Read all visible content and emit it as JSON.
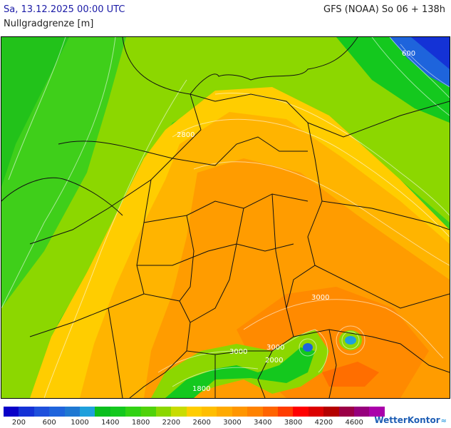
{
  "header": {
    "datetime": "Sa, 13.12.2025 00:00 UTC",
    "model_run": "GFS (NOAA) So 06 + 138h",
    "parameter": "Nullgradgrenze [m]"
  },
  "map": {
    "contour_labels": [
      "600",
      "2800",
      "3000",
      "3000",
      "3000",
      "2000",
      "1800"
    ]
  },
  "legend": {
    "colors": [
      "#0a00c8",
      "#1432d6",
      "#1e50dc",
      "#1e64dc",
      "#1e78d2",
      "#1ea0dc",
      "#0abe1e",
      "#14c81e",
      "#32d214",
      "#50d20a",
      "#8cd700",
      "#c8dc00",
      "#ffcd00",
      "#ffbe00",
      "#ffaa00",
      "#ff9600",
      "#ff8200",
      "#ff6400",
      "#ff3c00",
      "#ff0000",
      "#dc0000",
      "#b40000",
      "#9b0046",
      "#96007d",
      "#aa00aa"
    ],
    "labels": [
      "200",
      "600",
      "1000",
      "1400",
      "1800",
      "2200",
      "2600",
      "3000",
      "3400",
      "3800",
      "4200",
      "4600"
    ]
  },
  "brand": {
    "name": "WetterKontor"
  }
}
